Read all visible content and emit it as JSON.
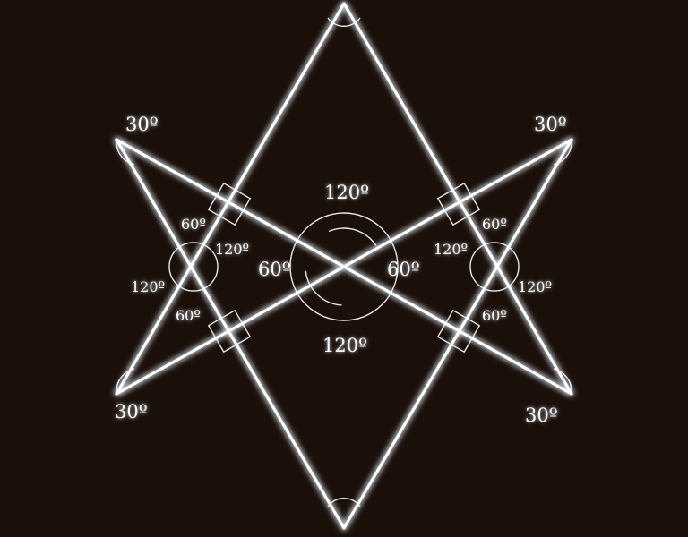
{
  "colors": {
    "background": "#1b0f09",
    "line": "#ffffff",
    "glow": "#bfe6ff"
  },
  "labels": {
    "top_left_tip": "30º",
    "top_right_tip": "30º",
    "bottom_left_tip": "30º",
    "bottom_right_tip": "30º",
    "center_top": "120º",
    "center_bottom": "120º",
    "center_left": "60º",
    "center_right": "60º",
    "left_top": "60º",
    "left_bottom": "60º",
    "left_outer": "120º",
    "left_inner": "120º",
    "right_top": "60º",
    "right_bottom": "60º",
    "right_outer": "120º",
    "right_inner": "120º"
  }
}
